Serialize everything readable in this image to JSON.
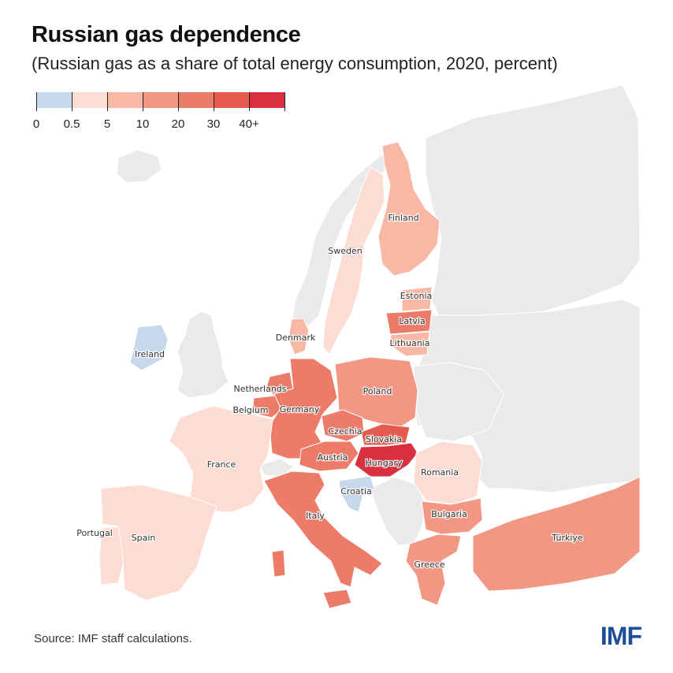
{
  "title": "Russian gas dependence",
  "subtitle": "(Russian gas as a share of total energy consumption, 2020, percent)",
  "legend": {
    "labels": [
      "0",
      "0.5",
      "5",
      "10",
      "20",
      "30",
      "40+"
    ],
    "colors": [
      "#c6d9ec",
      "#fcdcd3",
      "#f8b8a6",
      "#f29784",
      "#ec7b69",
      "#e55c4e",
      "#d8303e"
    ]
  },
  "countries": [
    {
      "name": "Finland",
      "bin": 2,
      "color": "#f8b8a6"
    },
    {
      "name": "Sweden",
      "bin": 1,
      "color": "#fcdcd3"
    },
    {
      "name": "Estonia",
      "bin": 2,
      "color": "#f8b8a6"
    },
    {
      "name": "Latvia",
      "bin": 4,
      "color": "#ec7b69"
    },
    {
      "name": "Lithuania",
      "bin": 2,
      "color": "#f8b8a6"
    },
    {
      "name": "Denmark",
      "bin": 2,
      "color": "#f8b8a6"
    },
    {
      "name": "Ireland",
      "bin": 0,
      "color": "#c6d9ec"
    },
    {
      "name": "Netherlands",
      "bin": 4,
      "color": "#ec7b69"
    },
    {
      "name": "Belgium",
      "bin": 4,
      "color": "#ec7b69"
    },
    {
      "name": "Germany",
      "bin": 4,
      "color": "#ec7b69"
    },
    {
      "name": "Poland",
      "bin": 3,
      "color": "#f29784"
    },
    {
      "name": "Czechia",
      "bin": 4,
      "color": "#ec7b69"
    },
    {
      "name": "Slovakia",
      "bin": 5,
      "color": "#e55c4e"
    },
    {
      "name": "Austria",
      "bin": 4,
      "color": "#ec7b69"
    },
    {
      "name": "Hungary",
      "bin": 6,
      "color": "#d8303e"
    },
    {
      "name": "France",
      "bin": 1,
      "color": "#fcdcd3"
    },
    {
      "name": "Romania",
      "bin": 1,
      "color": "#fcdcd3"
    },
    {
      "name": "Croatia",
      "bin": 0,
      "color": "#c6d9ec"
    },
    {
      "name": "Italy",
      "bin": 4,
      "color": "#ec7b69"
    },
    {
      "name": "Bulgaria",
      "bin": 3,
      "color": "#f29784"
    },
    {
      "name": "Portugal",
      "bin": 1,
      "color": "#fcdcd3"
    },
    {
      "name": "Spain",
      "bin": 1,
      "color": "#fcdcd3"
    },
    {
      "name": "Greece",
      "bin": 3,
      "color": "#f29784"
    },
    {
      "name": "Türkiye",
      "bin": 3,
      "color": "#f29784"
    }
  ],
  "non_data_color": "#e9ebea",
  "source": "Source: IMF staff calculations.",
  "logo": "IMF",
  "logo_color": "#1f4e9b"
}
